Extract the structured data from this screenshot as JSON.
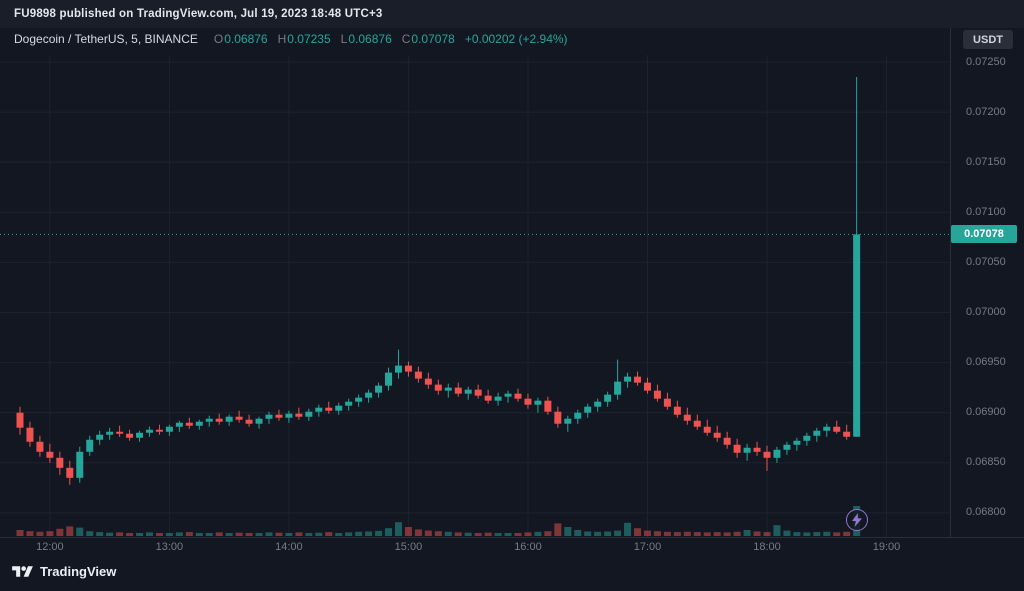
{
  "attribution": {
    "text": "FU9898 published on TradingView.com, Jul 19, 2023 18:48 UTC+3"
  },
  "symbol_bar": {
    "title": "Dogecoin / TetherUS, 5, BINANCE",
    "ohlc": {
      "o_label": "O",
      "o": "0.06876",
      "h_label": "H",
      "h": "0.07235",
      "l_label": "L",
      "l": "0.06876",
      "c_label": "C",
      "c": "0.07078",
      "change": "+0.00202 (+2.94%)"
    },
    "currency_button": "USDT"
  },
  "price_axis": {
    "ticks": [
      "0.07250",
      "0.07200",
      "0.07150",
      "0.07100",
      "0.07050",
      "0.07000",
      "0.06950",
      "0.06900",
      "0.06850",
      "0.06800"
    ],
    "last_price_label": "0.07078"
  },
  "time_axis": {
    "ticks": [
      "12:00",
      "13:00",
      "14:00",
      "15:00",
      "16:00",
      "17:00",
      "18:00",
      "19:00"
    ]
  },
  "footer": {
    "brand": "TradingView"
  },
  "colors": {
    "up": "#26a69a",
    "down": "#ef5350",
    "background": "#131722",
    "grid": "#1e222d",
    "axis_text": "#787b86",
    "text": "#d1d4dc",
    "panel": "#2a2e39",
    "flash": "#9575cd",
    "label_text": "#ffffff"
  },
  "chart_data": {
    "type": "candlestick",
    "title": "Dogecoin / TetherUS, 5, BINANCE",
    "symbol": "Dogecoin / TetherUS",
    "exchange": "BINANCE",
    "interval_minutes": 5,
    "start_time": "11:45",
    "x_ticks": [
      "12:00",
      "13:00",
      "14:00",
      "15:00",
      "16:00",
      "17:00",
      "18:00",
      "19:00"
    ],
    "ylim": [
      0.0679,
      0.0726
    ],
    "grid": true,
    "last_price": 0.07078,
    "last_change": "+0.00202 (+2.94%)",
    "ohlc_fields": [
      "open",
      "high",
      "low",
      "close"
    ],
    "candles": [
      [
        0.069,
        0.06906,
        0.06878,
        0.06885
      ],
      [
        0.06885,
        0.06891,
        0.06866,
        0.06871
      ],
      [
        0.06871,
        0.06877,
        0.06856,
        0.06861
      ],
      [
        0.06861,
        0.06869,
        0.0685,
        0.06855
      ],
      [
        0.06855,
        0.06861,
        0.06838,
        0.06845
      ],
      [
        0.06845,
        0.06852,
        0.06828,
        0.06835
      ],
      [
        0.06835,
        0.06866,
        0.0683,
        0.06861
      ],
      [
        0.06861,
        0.06877,
        0.06857,
        0.06873
      ],
      [
        0.06873,
        0.06882,
        0.06868,
        0.06878
      ],
      [
        0.06878,
        0.06885,
        0.06873,
        0.06881
      ],
      [
        0.06881,
        0.06887,
        0.06876,
        0.06879
      ],
      [
        0.06879,
        0.06883,
        0.06872,
        0.06875
      ],
      [
        0.06875,
        0.06882,
        0.06871,
        0.0688
      ],
      [
        0.0688,
        0.06886,
        0.06876,
        0.06883
      ],
      [
        0.06883,
        0.06888,
        0.06878,
        0.06881
      ],
      [
        0.06881,
        0.06888,
        0.06877,
        0.06886
      ],
      [
        0.06886,
        0.06892,
        0.06881,
        0.0689
      ],
      [
        0.0689,
        0.06895,
        0.06884,
        0.06887
      ],
      [
        0.06887,
        0.06893,
        0.06883,
        0.06891
      ],
      [
        0.06891,
        0.06897,
        0.06886,
        0.06894
      ],
      [
        0.06894,
        0.06899,
        0.06888,
        0.06891
      ],
      [
        0.06891,
        0.06898,
        0.06887,
        0.06896
      ],
      [
        0.06896,
        0.06902,
        0.0689,
        0.06893
      ],
      [
        0.06893,
        0.06898,
        0.06886,
        0.06889
      ],
      [
        0.06889,
        0.06896,
        0.06884,
        0.06894
      ],
      [
        0.06894,
        0.06901,
        0.06889,
        0.06898
      ],
      [
        0.06898,
        0.06903,
        0.06892,
        0.06895
      ],
      [
        0.06895,
        0.06902,
        0.0689,
        0.06899
      ],
      [
        0.06899,
        0.06905,
        0.06893,
        0.06896
      ],
      [
        0.06896,
        0.06904,
        0.06892,
        0.06901
      ],
      [
        0.06901,
        0.06908,
        0.06896,
        0.06905
      ],
      [
        0.06905,
        0.06911,
        0.06899,
        0.06902
      ],
      [
        0.06902,
        0.0691,
        0.06898,
        0.06907
      ],
      [
        0.06907,
        0.06914,
        0.06902,
        0.06911
      ],
      [
        0.06911,
        0.06918,
        0.06906,
        0.06915
      ],
      [
        0.06915,
        0.06923,
        0.0691,
        0.0692
      ],
      [
        0.0692,
        0.0693,
        0.06915,
        0.06927
      ],
      [
        0.06927,
        0.06945,
        0.06922,
        0.0694
      ],
      [
        0.0694,
        0.06963,
        0.06934,
        0.06947
      ],
      [
        0.06947,
        0.06951,
        0.06936,
        0.06941
      ],
      [
        0.06941,
        0.06946,
        0.0693,
        0.06934
      ],
      [
        0.06934,
        0.0694,
        0.06924,
        0.06928
      ],
      [
        0.06928,
        0.06933,
        0.06918,
        0.06922
      ],
      [
        0.06922,
        0.06929,
        0.06915,
        0.06925
      ],
      [
        0.06925,
        0.0693,
        0.06916,
        0.06919
      ],
      [
        0.06919,
        0.06926,
        0.06913,
        0.06923
      ],
      [
        0.06923,
        0.06928,
        0.06914,
        0.06917
      ],
      [
        0.06917,
        0.06923,
        0.06909,
        0.06912
      ],
      [
        0.06912,
        0.0692,
        0.06907,
        0.06916
      ],
      [
        0.06916,
        0.06922,
        0.0691,
        0.06919
      ],
      [
        0.06919,
        0.06924,
        0.06911,
        0.06914
      ],
      [
        0.06914,
        0.06919,
        0.06904,
        0.06908
      ],
      [
        0.06908,
        0.06915,
        0.069,
        0.06912
      ],
      [
        0.06912,
        0.06916,
        0.06898,
        0.06901
      ],
      [
        0.06901,
        0.06906,
        0.06885,
        0.06889
      ],
      [
        0.06889,
        0.06897,
        0.06881,
        0.06894
      ],
      [
        0.06894,
        0.06903,
        0.06889,
        0.069
      ],
      [
        0.069,
        0.06909,
        0.06895,
        0.06906
      ],
      [
        0.06906,
        0.06914,
        0.06901,
        0.06911
      ],
      [
        0.06911,
        0.06921,
        0.06906,
        0.06918
      ],
      [
        0.06918,
        0.06953,
        0.06913,
        0.06931
      ],
      [
        0.06931,
        0.0694,
        0.06925,
        0.06936
      ],
      [
        0.06936,
        0.06941,
        0.06927,
        0.0693
      ],
      [
        0.0693,
        0.06935,
        0.06919,
        0.06922
      ],
      [
        0.06922,
        0.06928,
        0.06911,
        0.06914
      ],
      [
        0.06914,
        0.0692,
        0.06903,
        0.06906
      ],
      [
        0.06906,
        0.06912,
        0.06895,
        0.06898
      ],
      [
        0.06898,
        0.06905,
        0.06888,
        0.06892
      ],
      [
        0.06892,
        0.06898,
        0.06883,
        0.06886
      ],
      [
        0.06886,
        0.06893,
        0.06877,
        0.0688
      ],
      [
        0.0688,
        0.06887,
        0.06871,
        0.06875
      ],
      [
        0.06875,
        0.06881,
        0.06864,
        0.06868
      ],
      [
        0.06868,
        0.06874,
        0.06855,
        0.0686
      ],
      [
        0.0686,
        0.06869,
        0.06852,
        0.06865
      ],
      [
        0.06865,
        0.06871,
        0.06857,
        0.06861
      ],
      [
        0.06861,
        0.06867,
        0.06842,
        0.06855
      ],
      [
        0.06855,
        0.06866,
        0.0685,
        0.06863
      ],
      [
        0.06863,
        0.06871,
        0.06858,
        0.06868
      ],
      [
        0.06868,
        0.06875,
        0.06862,
        0.06872
      ],
      [
        0.06872,
        0.0688,
        0.06867,
        0.06877
      ],
      [
        0.06877,
        0.06885,
        0.06871,
        0.06882
      ],
      [
        0.06882,
        0.06889,
        0.06876,
        0.06886
      ],
      [
        0.06886,
        0.06892,
        0.06879,
        0.06881
      ],
      [
        0.06881,
        0.06888,
        0.06873,
        0.06876
      ],
      [
        0.06876,
        0.07235,
        0.06876,
        0.07078
      ]
    ],
    "volume_relative": [
      0.2,
      0.16,
      0.14,
      0.16,
      0.24,
      0.32,
      0.28,
      0.16,
      0.13,
      0.11,
      0.12,
      0.1,
      0.1,
      0.12,
      0.1,
      0.1,
      0.12,
      0.13,
      0.1,
      0.1,
      0.12,
      0.1,
      0.11,
      0.1,
      0.1,
      0.12,
      0.11,
      0.1,
      0.12,
      0.1,
      0.11,
      0.13,
      0.1,
      0.12,
      0.14,
      0.15,
      0.17,
      0.26,
      0.46,
      0.3,
      0.22,
      0.18,
      0.16,
      0.14,
      0.12,
      0.11,
      0.1,
      0.11,
      0.1,
      0.1,
      0.1,
      0.12,
      0.14,
      0.16,
      0.42,
      0.3,
      0.2,
      0.15,
      0.14,
      0.15,
      0.18,
      0.44,
      0.26,
      0.18,
      0.16,
      0.14,
      0.13,
      0.14,
      0.13,
      0.12,
      0.13,
      0.12,
      0.14,
      0.2,
      0.15,
      0.13,
      0.36,
      0.18,
      0.13,
      0.12,
      0.13,
      0.14,
      0.12,
      0.14,
      1.0
    ]
  }
}
